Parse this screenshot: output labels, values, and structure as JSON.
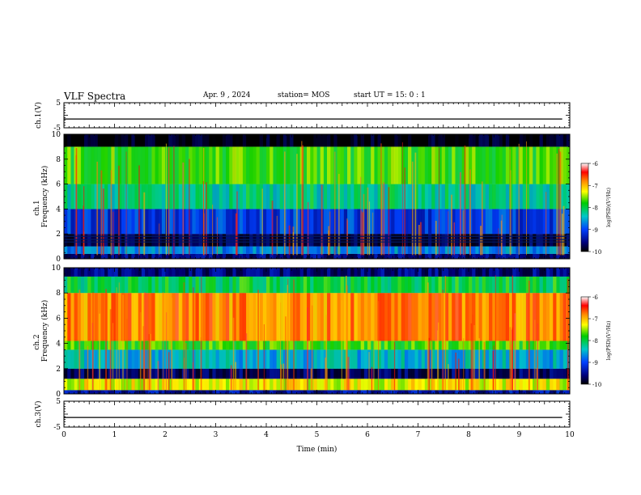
{
  "header": {
    "title": "VLF Spectra",
    "date": "Apr. 9 , 2024",
    "station": "station= MOS",
    "start": "start UT = 15: 0 : 1"
  },
  "chart_data": [
    {
      "type": "line",
      "ylabel": "ch.1(V)",
      "xlim": [
        0,
        10
      ],
      "ylim": [
        -5,
        5
      ],
      "yticks": [
        "5",
        "-5"
      ],
      "series": [
        {
          "values": [
            -1.5,
            -1.5
          ]
        }
      ]
    },
    {
      "type": "heatmap",
      "ylabel_top": "ch.1",
      "ylabel": "Frequency (kHz)",
      "xlim": [
        0,
        10
      ],
      "ylim": [
        0,
        10
      ],
      "yticks": [
        "0",
        "2",
        "4",
        "6",
        "8",
        "10"
      ],
      "colorbar": {
        "label": "log(PSD)(V²/Hz)",
        "ticks": [
          "-6",
          "-7",
          "-8",
          "-9",
          "-10"
        ],
        "range": [
          -10,
          -6
        ]
      },
      "bands": [
        {
          "f": [
            0,
            0.4
          ],
          "level": -9.6
        },
        {
          "f": [
            0.4,
            1.0
          ],
          "level": -8.7
        },
        {
          "f": [
            1.0,
            2.0
          ],
          "level": -9.8
        },
        {
          "f": [
            2.0,
            4.0
          ],
          "level": -9.1
        },
        {
          "f": [
            4.0,
            6.0
          ],
          "level": -8.2
        },
        {
          "f": [
            6.0,
            9.0
          ],
          "level": -7.7
        },
        {
          "f": [
            9.0,
            10.0
          ],
          "level": -10.0
        }
      ]
    },
    {
      "type": "heatmap",
      "ylabel_top": "ch.2",
      "ylabel": "Frequency (kHz)",
      "xlim": [
        0,
        10
      ],
      "ylim": [
        0,
        10
      ],
      "yticks": [
        "0",
        "2",
        "4",
        "6",
        "8",
        "10"
      ],
      "colorbar": {
        "label": "log(PSD)(V²/Hz)",
        "ticks": [
          "-6",
          "-7",
          "-8",
          "-9",
          "-10"
        ],
        "range": [
          -10,
          -6
        ]
      },
      "bands": [
        {
          "f": [
            0,
            0.3
          ],
          "level": -9.4
        },
        {
          "f": [
            0.3,
            1.2
          ],
          "level": -7.3
        },
        {
          "f": [
            1.2,
            2.0
          ],
          "level": -9.7
        },
        {
          "f": [
            2.0,
            3.5
          ],
          "level": -8.5
        },
        {
          "f": [
            3.5,
            4.2
          ],
          "level": -7.7
        },
        {
          "f": [
            4.2,
            8.0
          ],
          "level": -6.8
        },
        {
          "f": [
            8.0,
            9.3
          ],
          "level": -8.0
        },
        {
          "f": [
            9.3,
            10.0
          ],
          "level": -9.6
        }
      ]
    },
    {
      "type": "line",
      "ylabel": "ch.3(V)",
      "xlim": [
        0,
        10
      ],
      "ylim": [
        -5,
        5
      ],
      "yticks": [
        "5",
        "-5"
      ],
      "series": [
        {
          "values": [
            -1.3,
            -1.3
          ]
        }
      ]
    }
  ],
  "xaxis": {
    "label": "Time (min)",
    "ticks": [
      "0",
      "1",
      "2",
      "3",
      "4",
      "5",
      "6",
      "7",
      "8",
      "9",
      "10"
    ]
  }
}
